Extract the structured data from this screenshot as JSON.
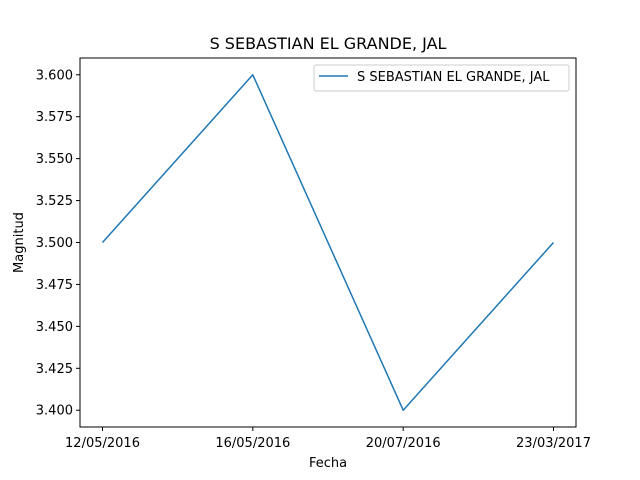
{
  "chart_data": {
    "type": "line",
    "title": "S SEBASTIAN EL GRANDE, JAL",
    "xlabel": "Fecha",
    "ylabel": "Magnitud",
    "categories": [
      "12/05/2016",
      "16/05/2016",
      "20/07/2016",
      "23/03/2017"
    ],
    "series": [
      {
        "name": "S SEBASTIAN EL GRANDE, JAL",
        "values": [
          3.5,
          3.6,
          3.4,
          3.5
        ],
        "color": "#1f77b4"
      }
    ],
    "ylim": [
      3.39,
      3.61
    ],
    "yticks": [
      3.4,
      3.425,
      3.45,
      3.475,
      3.5,
      3.525,
      3.55,
      3.575,
      3.6
    ],
    "ytick_labels": [
      "3.400",
      "3.425",
      "3.450",
      "3.475",
      "3.500",
      "3.525",
      "3.550",
      "3.575",
      "3.600"
    ],
    "grid": false,
    "legend_position": "top-right"
  }
}
